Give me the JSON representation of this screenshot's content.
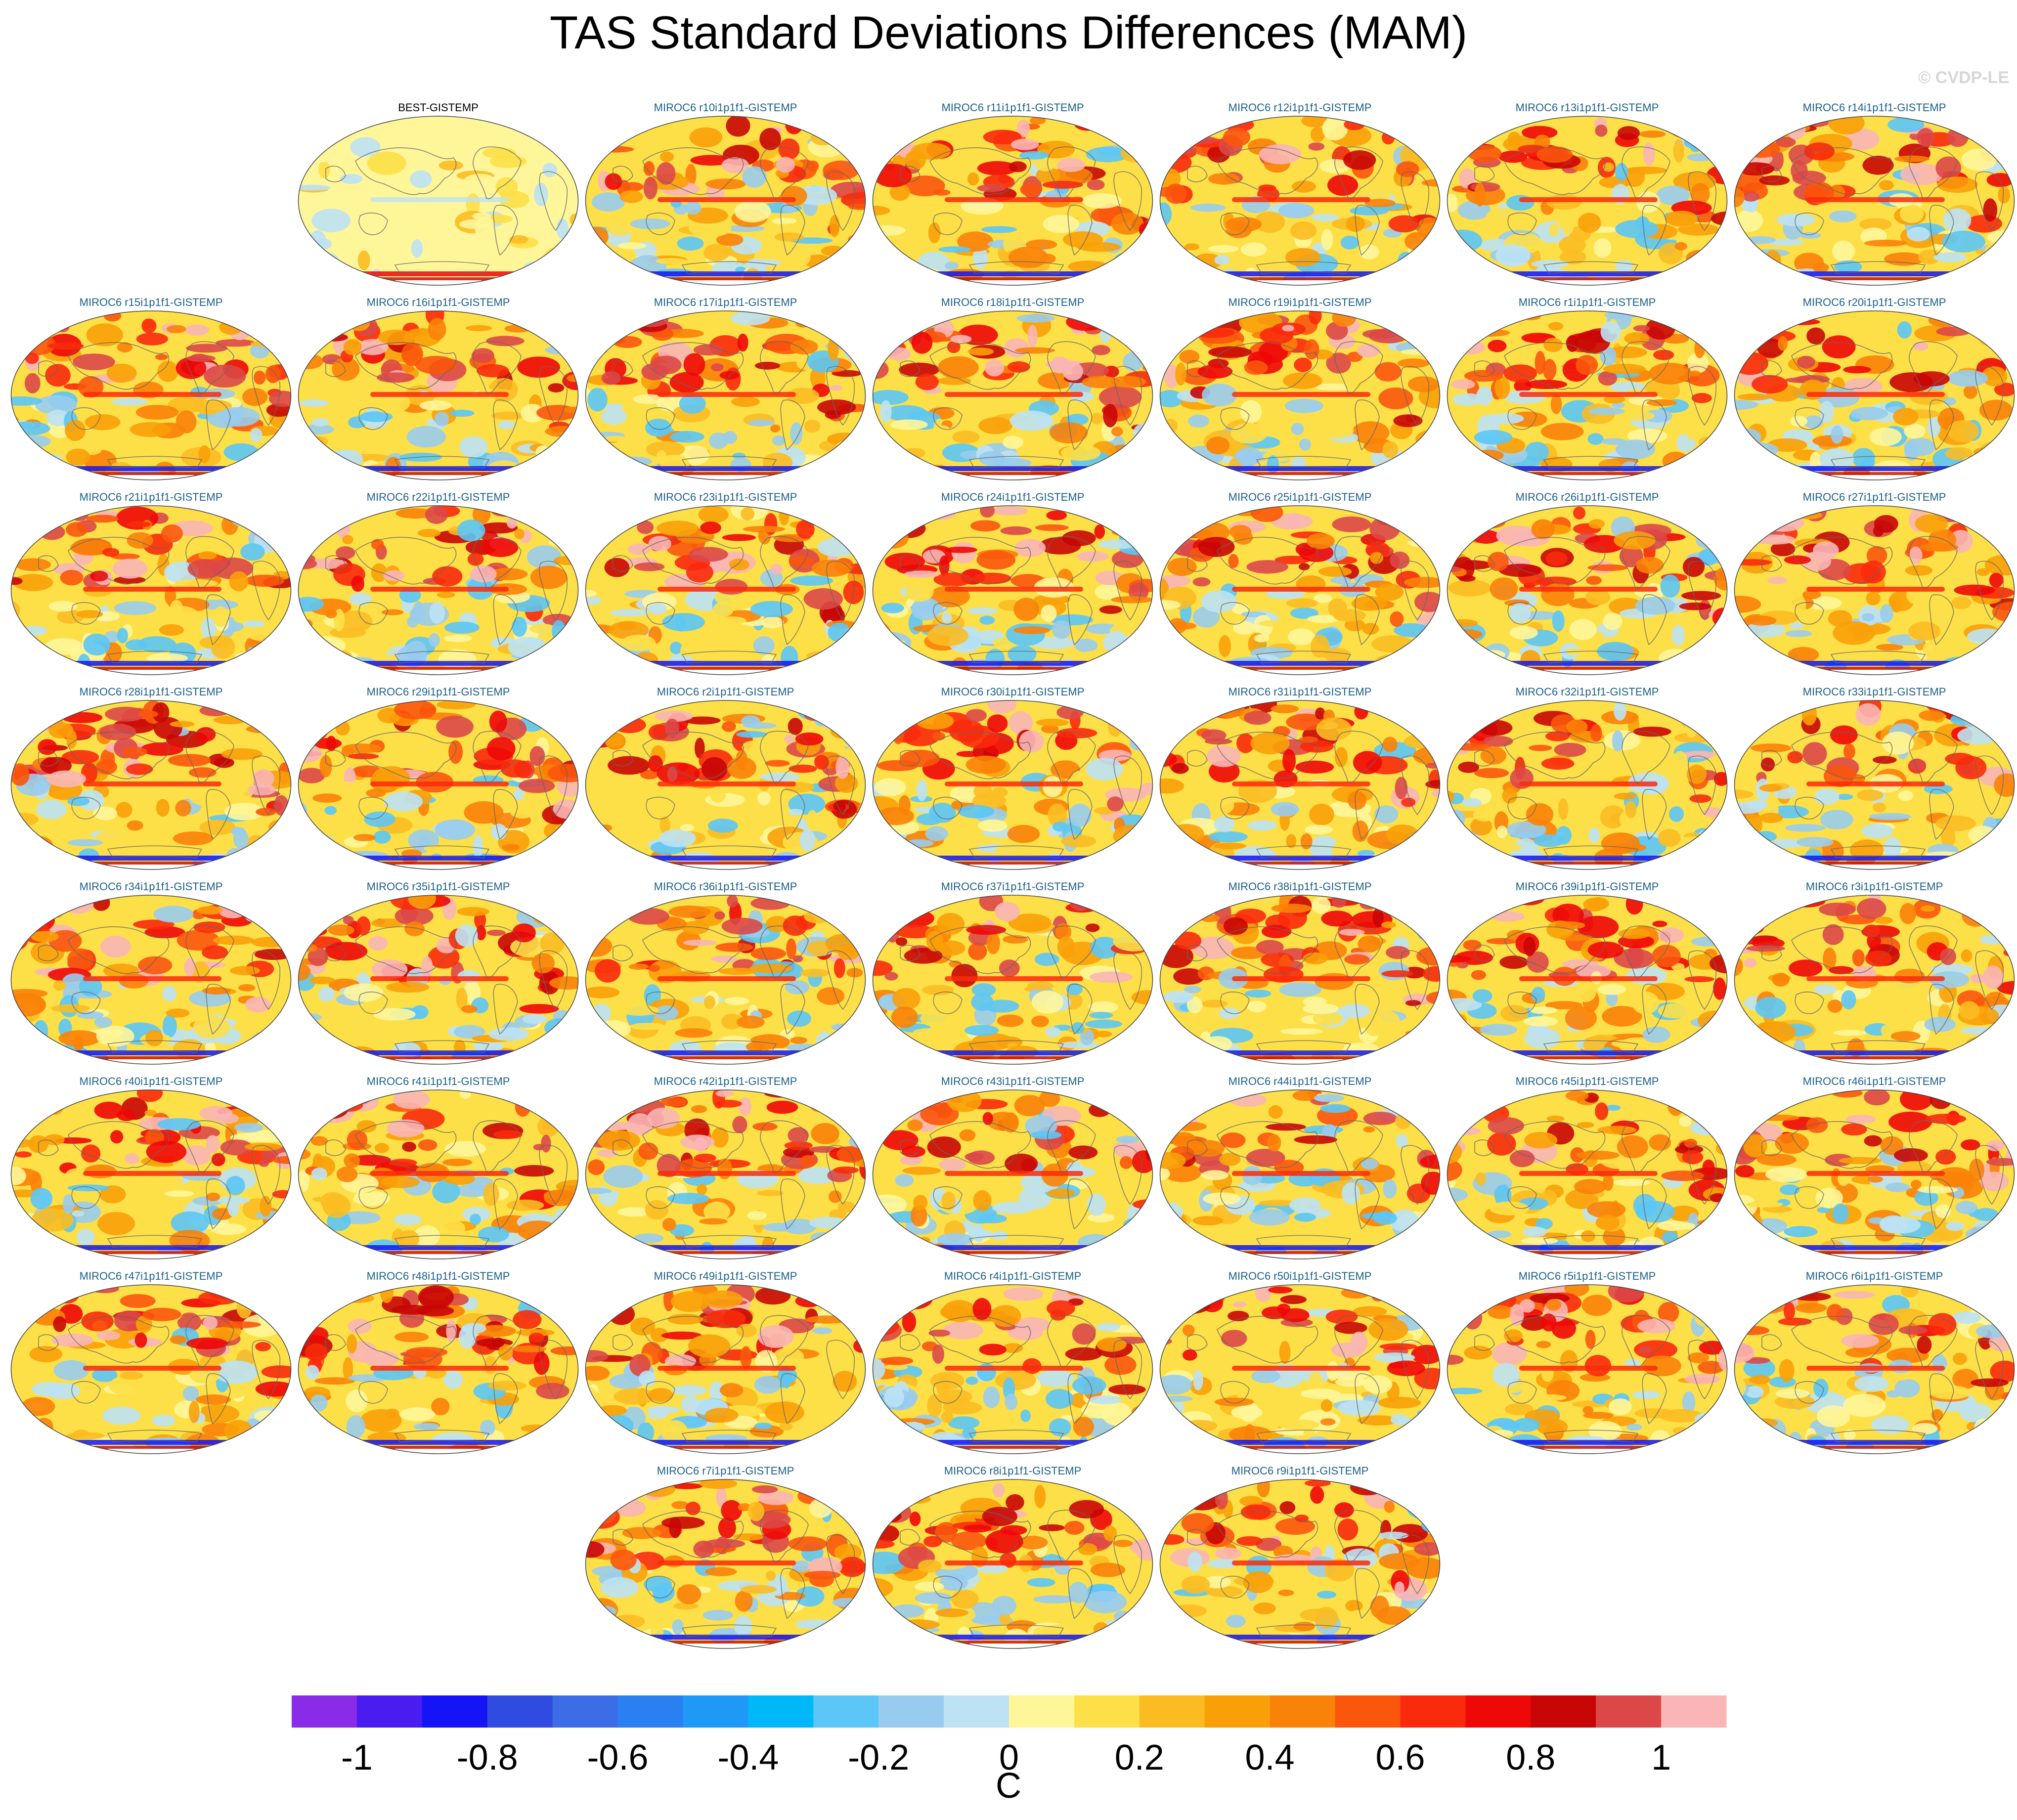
{
  "title": "TAS Standard Deviations Differences (MAM)",
  "watermark": "© CVDP-LE",
  "panels": [
    {
      "label": "BEST-GISTEMP",
      "type": "obs"
    },
    {
      "label": "MIROC6 r10i1p1f1-GISTEMP",
      "type": "model"
    },
    {
      "label": "MIROC6 r11i1p1f1-GISTEMP",
      "type": "model"
    },
    {
      "label": "MIROC6 r12i1p1f1-GISTEMP",
      "type": "model"
    },
    {
      "label": "MIROC6 r13i1p1f1-GISTEMP",
      "type": "model"
    },
    {
      "label": "MIROC6 r14i1p1f1-GISTEMP",
      "type": "model"
    },
    {
      "label": "MIROC6 r15i1p1f1-GISTEMP",
      "type": "model"
    },
    {
      "label": "MIROC6 r16i1p1f1-GISTEMP",
      "type": "model"
    },
    {
      "label": "MIROC6 r17i1p1f1-GISTEMP",
      "type": "model"
    },
    {
      "label": "MIROC6 r18i1p1f1-GISTEMP",
      "type": "model"
    },
    {
      "label": "MIROC6 r19i1p1f1-GISTEMP",
      "type": "model"
    },
    {
      "label": "MIROC6 r1i1p1f1-GISTEMP",
      "type": "model"
    },
    {
      "label": "MIROC6 r20i1p1f1-GISTEMP",
      "type": "model"
    },
    {
      "label": "MIROC6 r21i1p1f1-GISTEMP",
      "type": "model"
    },
    {
      "label": "MIROC6 r22i1p1f1-GISTEMP",
      "type": "model"
    },
    {
      "label": "MIROC6 r23i1p1f1-GISTEMP",
      "type": "model"
    },
    {
      "label": "MIROC6 r24i1p1f1-GISTEMP",
      "type": "model"
    },
    {
      "label": "MIROC6 r25i1p1f1-GISTEMP",
      "type": "model"
    },
    {
      "label": "MIROC6 r26i1p1f1-GISTEMP",
      "type": "model"
    },
    {
      "label": "MIROC6 r27i1p1f1-GISTEMP",
      "type": "model"
    },
    {
      "label": "MIROC6 r28i1p1f1-GISTEMP",
      "type": "model"
    },
    {
      "label": "MIROC6 r29i1p1f1-GISTEMP",
      "type": "model"
    },
    {
      "label": "MIROC6 r2i1p1f1-GISTEMP",
      "type": "model"
    },
    {
      "label": "MIROC6 r30i1p1f1-GISTEMP",
      "type": "model"
    },
    {
      "label": "MIROC6 r31i1p1f1-GISTEMP",
      "type": "model"
    },
    {
      "label": "MIROC6 r32i1p1f1-GISTEMP",
      "type": "model"
    },
    {
      "label": "MIROC6 r33i1p1f1-GISTEMP",
      "type": "model"
    },
    {
      "label": "MIROC6 r34i1p1f1-GISTEMP",
      "type": "model"
    },
    {
      "label": "MIROC6 r35i1p1f1-GISTEMP",
      "type": "model"
    },
    {
      "label": "MIROC6 r36i1p1f1-GISTEMP",
      "type": "model"
    },
    {
      "label": "MIROC6 r37i1p1f1-GISTEMP",
      "type": "model"
    },
    {
      "label": "MIROC6 r38i1p1f1-GISTEMP",
      "type": "model"
    },
    {
      "label": "MIROC6 r39i1p1f1-GISTEMP",
      "type": "model"
    },
    {
      "label": "MIROC6 r3i1p1f1-GISTEMP",
      "type": "model"
    },
    {
      "label": "MIROC6 r40i1p1f1-GISTEMP",
      "type": "model"
    },
    {
      "label": "MIROC6 r41i1p1f1-GISTEMP",
      "type": "model"
    },
    {
      "label": "MIROC6 r42i1p1f1-GISTEMP",
      "type": "model"
    },
    {
      "label": "MIROC6 r43i1p1f1-GISTEMP",
      "type": "model"
    },
    {
      "label": "MIROC6 r44i1p1f1-GISTEMP",
      "type": "model"
    },
    {
      "label": "MIROC6 r45i1p1f1-GISTEMP",
      "type": "model"
    },
    {
      "label": "MIROC6 r46i1p1f1-GISTEMP",
      "type": "model"
    },
    {
      "label": "MIROC6 r47i1p1f1-GISTEMP",
      "type": "model"
    },
    {
      "label": "MIROC6 r48i1p1f1-GISTEMP",
      "type": "model"
    },
    {
      "label": "MIROC6 r49i1p1f1-GISTEMP",
      "type": "model"
    },
    {
      "label": "MIROC6 r4i1p1f1-GISTEMP",
      "type": "model"
    },
    {
      "label": "MIROC6 r50i1p1f1-GISTEMP",
      "type": "model"
    },
    {
      "label": "MIROC6 r5i1p1f1-GISTEMP",
      "type": "model"
    },
    {
      "label": "MIROC6 r6i1p1f1-GISTEMP",
      "type": "model"
    },
    {
      "label": "MIROC6 r7i1p1f1-GISTEMP",
      "type": "model"
    },
    {
      "label": "MIROC6 r8i1p1f1-GISTEMP",
      "type": "model"
    },
    {
      "label": "MIROC6 r9i1p1f1-GISTEMP",
      "type": "model"
    }
  ],
  "colorbar": {
    "unit": "C",
    "colors": [
      "#8a2be8",
      "#4a1cf0",
      "#1414f6",
      "#2f4be0",
      "#3d6de6",
      "#2a80f0",
      "#1e9af6",
      "#00b8f8",
      "#5cc6f6",
      "#98ccee",
      "#bde2f4",
      "#fff69a",
      "#fde048",
      "#fbbc22",
      "#f9a008",
      "#f98208",
      "#fa560c",
      "#fa2a0c",
      "#ee0808",
      "#c80606",
      "#dc4848",
      "#fab6b6"
    ],
    "tick_labels": [
      "-1",
      "-0.8",
      "-0.6",
      "-0.4",
      "-0.2",
      "0",
      "0.2",
      "0.4",
      "0.6",
      "0.8",
      "1"
    ]
  }
}
